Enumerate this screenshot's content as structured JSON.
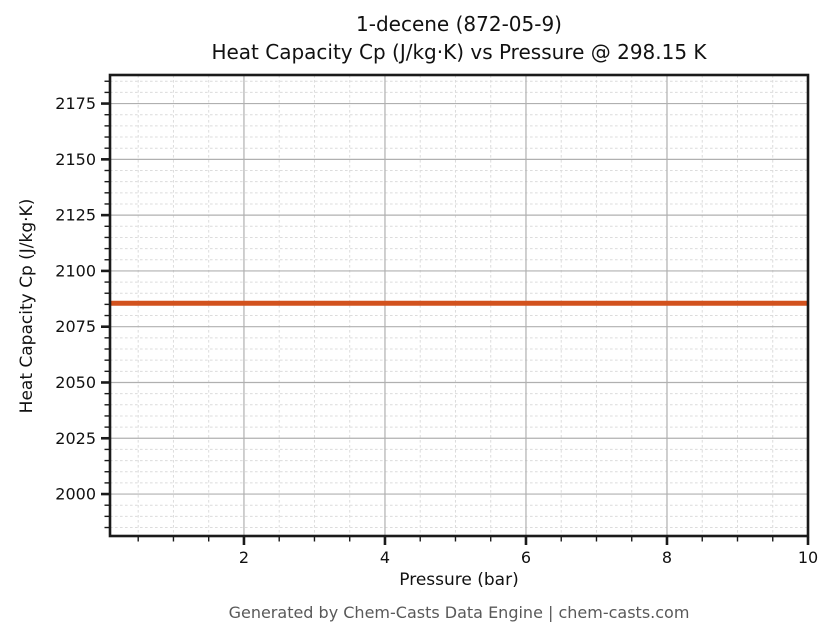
{
  "chart_data": {
    "type": "line",
    "title": "1-decene (872-05-9)",
    "subtitle": "Heat Capacity Cp (J/kg·K) vs Pressure @ 298.15 K",
    "xlabel": "Pressure (bar)",
    "ylabel": "Heat Capacity Cp (J/kg·K)",
    "xlim": [
      0.1,
      10
    ],
    "ylim": [
      1981.2,
      2187.8
    ],
    "xticks": [
      2,
      4,
      6,
      8,
      10
    ],
    "yticks": [
      2000,
      2025,
      2050,
      2075,
      2100,
      2125,
      2150,
      2175
    ],
    "x_minor_step": 0.5,
    "y_minor_step": 5,
    "grid": {
      "major_color": "#b0b0b0",
      "minor_color": "#dcdcdc",
      "minor_style": "dashed"
    },
    "legend": null,
    "series": [
      {
        "name": "Heat Capacity Cp",
        "color": "#d2521e",
        "x": [
          0.1,
          10
        ],
        "y": [
          2085.5,
          2085.5
        ]
      }
    ]
  },
  "footer": {
    "text": "Generated by Chem-Casts Data Engine | chem-casts.com"
  },
  "style": {
    "spine_color": "#1a1a1a",
    "tick_label_color": "#111111",
    "footer_color": "#595959"
  }
}
